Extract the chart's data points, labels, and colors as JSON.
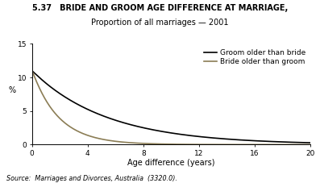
{
  "title_line1": "5.37   BRIDE AND GROOM AGE DIFFERENCE AT MARRIAGE,",
  "title_line2": "Proportion of all marriages — 2001",
  "xlabel": "Age difference (years)",
  "ylabel": "%",
  "source": "Source:  Marriages and Divorces, Australia  (3320.0).",
  "xlim": [
    0,
    20
  ],
  "ylim": [
    0,
    15
  ],
  "xticks": [
    0,
    4,
    8,
    12,
    16,
    20
  ],
  "yticks": [
    0,
    5,
    10,
    15
  ],
  "legend_labels": [
    "Groom older than bride",
    "Bride older than groom"
  ],
  "groom_color": "#000000",
  "bride_color": "#8B7D55",
  "line_width": 1.2,
  "background_color": "#ffffff",
  "title_fontsize": 7.0,
  "label_fontsize": 7.0,
  "tick_fontsize": 6.5,
  "legend_fontsize": 6.5,
  "source_fontsize": 5.8
}
